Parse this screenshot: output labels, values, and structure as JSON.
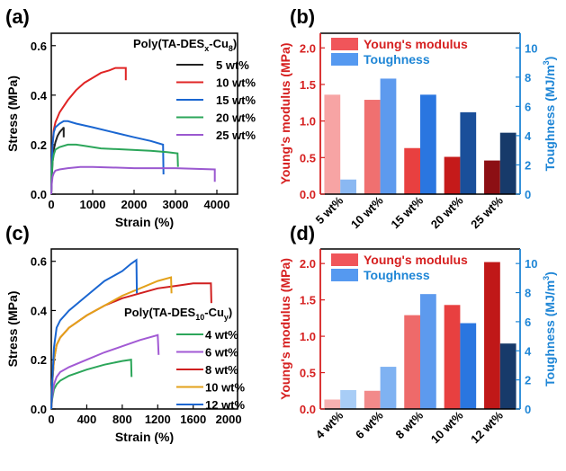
{
  "chart_data": [
    {
      "id": "a",
      "panel_label": "(a)",
      "type": "line",
      "xlabel": "Strain (%)",
      "ylabel": "Stress (MPa)",
      "xlim": [
        0,
        4500
      ],
      "ylim": [
        0,
        0.65
      ],
      "xticks": [
        0,
        1000,
        2000,
        3000,
        4000
      ],
      "yticks": [
        0.0,
        0.2,
        0.4,
        0.6
      ],
      "legend_title": {
        "prefix": "Poly(TA-DES",
        "sub": "x",
        "mid": "-Cu",
        "sub2": "8",
        "suffix": ")"
      },
      "legend_position": "right",
      "grid": false,
      "series": [
        {
          "name": "5 wt%",
          "color": "#222222",
          "points": [
            [
              0,
              0
            ],
            [
              10,
              0.05
            ],
            [
              30,
              0.13
            ],
            [
              60,
              0.18
            ],
            [
              100,
              0.21
            ],
            [
              150,
              0.235
            ],
            [
              200,
              0.25
            ],
            [
              250,
              0.26
            ],
            [
              285,
              0.265
            ],
            [
              300,
              0.27
            ],
            [
              300,
              0.23
            ]
          ]
        },
        {
          "name": "10 wt%",
          "color": "#e02424",
          "points": [
            [
              0,
              0
            ],
            [
              10,
              0.1
            ],
            [
              30,
              0.2
            ],
            [
              60,
              0.26
            ],
            [
              100,
              0.29
            ],
            [
              200,
              0.33
            ],
            [
              400,
              0.38
            ],
            [
              600,
              0.42
            ],
            [
              800,
              0.45
            ],
            [
              1000,
              0.47
            ],
            [
              1200,
              0.49
            ],
            [
              1400,
              0.5
            ],
            [
              1550,
              0.51
            ],
            [
              1700,
              0.51
            ],
            [
              1800,
              0.51
            ],
            [
              1800,
              0.46
            ]
          ]
        },
        {
          "name": "15 wt%",
          "color": "#1a66d1",
          "points": [
            [
              0,
              0
            ],
            [
              10,
              0.1
            ],
            [
              30,
              0.2
            ],
            [
              60,
              0.25
            ],
            [
              100,
              0.27
            ],
            [
              200,
              0.285
            ],
            [
              300,
              0.295
            ],
            [
              400,
              0.295
            ],
            [
              600,
              0.285
            ],
            [
              1000,
              0.27
            ],
            [
              1500,
              0.25
            ],
            [
              2000,
              0.23
            ],
            [
              2400,
              0.215
            ],
            [
              2700,
              0.2
            ],
            [
              2710,
              0.08
            ]
          ]
        },
        {
          "name": "20 wt%",
          "color": "#2ca65a",
          "points": [
            [
              0,
              0
            ],
            [
              10,
              0.07
            ],
            [
              30,
              0.13
            ],
            [
              60,
              0.16
            ],
            [
              100,
              0.18
            ],
            [
              200,
              0.19
            ],
            [
              400,
              0.2
            ],
            [
              600,
              0.2
            ],
            [
              800,
              0.195
            ],
            [
              1200,
              0.185
            ],
            [
              1800,
              0.18
            ],
            [
              2400,
              0.175
            ],
            [
              2800,
              0.17
            ],
            [
              3050,
              0.165
            ],
            [
              3060,
              0.11
            ]
          ]
        },
        {
          "name": "25 wt%",
          "color": "#9b59d0",
          "points": [
            [
              0,
              0
            ],
            [
              10,
              0.04
            ],
            [
              30,
              0.07
            ],
            [
              60,
              0.085
            ],
            [
              100,
              0.095
            ],
            [
              200,
              0.1
            ],
            [
              400,
              0.105
            ],
            [
              700,
              0.11
            ],
            [
              1000,
              0.11
            ],
            [
              2000,
              0.105
            ],
            [
              3000,
              0.105
            ],
            [
              3950,
              0.1
            ],
            [
              3950,
              0.05
            ]
          ]
        }
      ]
    },
    {
      "id": "b",
      "panel_label": "(b)",
      "type": "bar",
      "categories": [
        "5 wt%",
        "10 wt%",
        "15 wt%",
        "20 wt%",
        "25 wt%"
      ],
      "y1label": "Young's modulus (MPa)",
      "y2label": "Toughness (MJ/m3)",
      "y2label_main": "Toughness (MJ/m",
      "y2label_sup": "3",
      "y2label_end": ")",
      "y1lim": [
        0,
        2.2
      ],
      "y2lim": [
        0,
        11
      ],
      "y1ticks": [
        0.0,
        0.5,
        1.0,
        1.5,
        2.0
      ],
      "y2ticks": [
        0,
        2,
        4,
        6,
        8,
        10
      ],
      "legend_position": "top-left",
      "grid": false,
      "series": [
        {
          "name": "Young's modulus",
          "axis": "left",
          "legend_color": "#f0555a",
          "colors": [
            "#f7a4a4",
            "#f07070",
            "#e84040",
            "#c51a1a",
            "#8c0f14"
          ],
          "values": [
            1.36,
            1.29,
            0.63,
            0.51,
            0.46
          ]
        },
        {
          "name": "Toughness",
          "axis": "right",
          "legend_color": "#5599f0",
          "colors": [
            "#8ab8f2",
            "#5d9aee",
            "#2a76e0",
            "#1a4f9a",
            "#173a6a"
          ],
          "values": [
            1.0,
            7.9,
            6.8,
            5.6,
            4.2
          ]
        }
      ]
    },
    {
      "id": "c",
      "panel_label": "(c)",
      "type": "line",
      "xlabel": "Strain (%)",
      "ylabel": "Stress (MPa)",
      "xlim": [
        0,
        2100
      ],
      "ylim": [
        0,
        0.65
      ],
      "xticks": [
        0,
        400,
        800,
        1200,
        1600,
        2000
      ],
      "yticks": [
        0.0,
        0.2,
        0.4,
        0.6
      ],
      "legend_title": {
        "prefix": "Poly(TA-DES",
        "sub": "10",
        "mid": "-Cu",
        "sub2": "y",
        "suffix": ")"
      },
      "legend_position": "right",
      "grid": false,
      "series": [
        {
          "name": "4 wt%",
          "color": "#2ca65a",
          "points": [
            [
              0,
              0
            ],
            [
              10,
              0.04
            ],
            [
              30,
              0.08
            ],
            [
              60,
              0.1
            ],
            [
              100,
              0.115
            ],
            [
              200,
              0.135
            ],
            [
              400,
              0.16
            ],
            [
              600,
              0.18
            ],
            [
              800,
              0.195
            ],
            [
              900,
              0.2
            ],
            [
              905,
              0.13
            ]
          ]
        },
        {
          "name": "6 wt%",
          "color": "#a25ad4",
          "points": [
            [
              0,
              0
            ],
            [
              10,
              0.05
            ],
            [
              30,
              0.1
            ],
            [
              60,
              0.13
            ],
            [
              100,
              0.15
            ],
            [
              200,
              0.17
            ],
            [
              400,
              0.2
            ],
            [
              600,
              0.23
            ],
            [
              800,
              0.255
            ],
            [
              1000,
              0.28
            ],
            [
              1200,
              0.3
            ],
            [
              1210,
              0.22
            ]
          ]
        },
        {
          "name": "8 wt%",
          "color": "#d01f1f",
          "points": [
            [
              0,
              0
            ],
            [
              10,
              0.1
            ],
            [
              30,
              0.2
            ],
            [
              60,
              0.26
            ],
            [
              100,
              0.29
            ],
            [
              200,
              0.33
            ],
            [
              400,
              0.38
            ],
            [
              600,
              0.42
            ],
            [
              800,
              0.45
            ],
            [
              1000,
              0.47
            ],
            [
              1200,
              0.49
            ],
            [
              1400,
              0.5
            ],
            [
              1600,
              0.51
            ],
            [
              1800,
              0.51
            ],
            [
              1805,
              0.43
            ]
          ]
        },
        {
          "name": "10 wt%",
          "color": "#e3a11a",
          "points": [
            [
              0,
              0
            ],
            [
              10,
              0.1
            ],
            [
              30,
              0.2
            ],
            [
              60,
              0.26
            ],
            [
              100,
              0.29
            ],
            [
              200,
              0.33
            ],
            [
              400,
              0.38
            ],
            [
              600,
              0.42
            ],
            [
              800,
              0.46
            ],
            [
              1000,
              0.49
            ],
            [
              1200,
              0.52
            ],
            [
              1350,
              0.535
            ],
            [
              1355,
              0.47
            ]
          ]
        },
        {
          "name": "12 wt%",
          "color": "#1a66d1",
          "points": [
            [
              0,
              0
            ],
            [
              10,
              0.1
            ],
            [
              30,
              0.25
            ],
            [
              60,
              0.33
            ],
            [
              100,
              0.36
            ],
            [
              200,
              0.4
            ],
            [
              400,
              0.46
            ],
            [
              600,
              0.52
            ],
            [
              800,
              0.56
            ],
            [
              900,
              0.59
            ],
            [
              960,
              0.605
            ],
            [
              965,
              0.47
            ]
          ]
        }
      ]
    },
    {
      "id": "d",
      "panel_label": "(d)",
      "type": "bar",
      "categories": [
        "4 wt%",
        "6 wt%",
        "8 wt%",
        "10 wt%",
        "12 wt%"
      ],
      "y1label": "Young's modulus (MPa)",
      "y2label": "Toughness (MJ/m3)",
      "y2label_main": "Toughness (MJ/m",
      "y2label_sup": "3",
      "y2label_end": ")",
      "y1lim": [
        0,
        2.2
      ],
      "y2lim": [
        0,
        11
      ],
      "y1ticks": [
        0.0,
        0.5,
        1.0,
        1.5,
        2.0
      ],
      "y2ticks": [
        0,
        2,
        4,
        6,
        8,
        10
      ],
      "legend_position": "top-left",
      "grid": false,
      "series": [
        {
          "name": "Young's modulus",
          "axis": "left",
          "legend_color": "#f0555a",
          "colors": [
            "#f7b0b0",
            "#f28a8a",
            "#ee6a6a",
            "#e84040",
            "#c01818"
          ],
          "values": [
            0.13,
            0.25,
            1.29,
            1.43,
            2.02
          ]
        },
        {
          "name": "Toughness",
          "axis": "right",
          "legend_color": "#5599f0",
          "colors": [
            "#a8cdf6",
            "#7fb2f2",
            "#5d9aee",
            "#2a76e0",
            "#173a6a"
          ],
          "values": [
            1.3,
            2.9,
            7.9,
            5.9,
            4.5
          ]
        }
      ]
    }
  ]
}
